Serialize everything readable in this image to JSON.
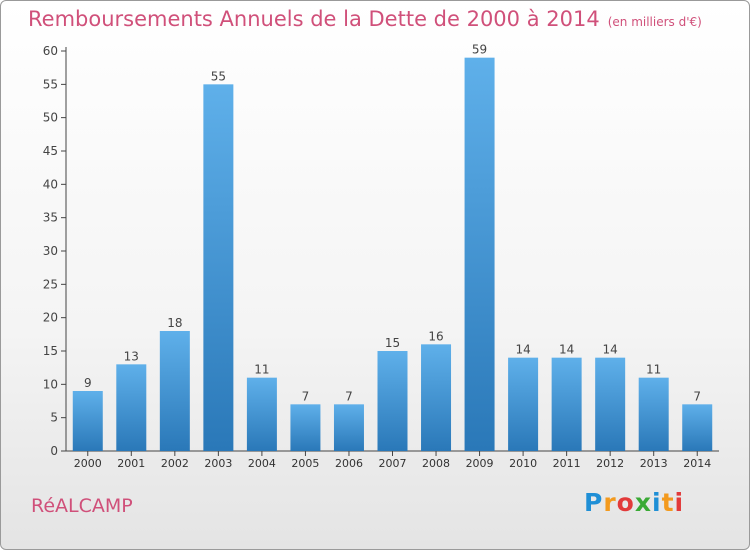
{
  "title": "Remboursements Annuels de la Dette de 2000 à 2014",
  "unit": "(en milliers d'€)",
  "commune": "RéALCAMP",
  "logo": {
    "text": "Proxiti",
    "colors": [
      "#1f8fd6",
      "#f39a1e",
      "#e23a3a",
      "#3aaa35",
      "#1f8fd6",
      "#f39a1e",
      "#e23a3a"
    ]
  },
  "colors": {
    "accent": "#d0507a",
    "bar_top": "#5fb0ea",
    "bar_bottom": "#2a78b8"
  },
  "chart_data": {
    "type": "bar",
    "categories": [
      "2000",
      "2001",
      "2002",
      "2003",
      "2004",
      "2005",
      "2006",
      "2007",
      "2008",
      "2009",
      "2010",
      "2011",
      "2012",
      "2013",
      "2014"
    ],
    "values": [
      9,
      13,
      18,
      55,
      11,
      7,
      7,
      15,
      16,
      59,
      14,
      14,
      14,
      11,
      7
    ],
    "ylim": [
      0,
      60
    ],
    "yticks": [
      0,
      5,
      10,
      15,
      20,
      25,
      30,
      35,
      40,
      45,
      50,
      55,
      60
    ],
    "grid": false,
    "data_labels": true
  }
}
